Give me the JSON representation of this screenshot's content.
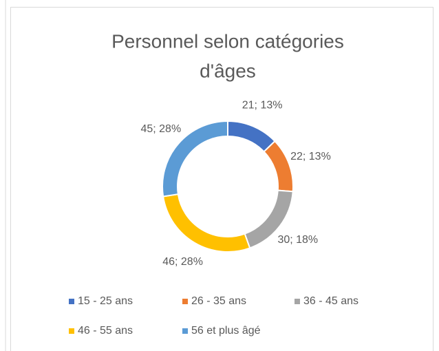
{
  "chart_data": {
    "type": "donut",
    "title": [
      "Personnel selon catégories",
      "d'âges"
    ],
    "categories": [
      "15 - 25 ans",
      "26 - 35 ans",
      "36 - 45 ans",
      "46 - 55 ans",
      "56 et plus âgé"
    ],
    "values": [
      21,
      22,
      30,
      46,
      45
    ],
    "value_labels": [
      "21; 13%",
      "22; 13%",
      "30; 18%",
      "46; 28%",
      "45; 28%"
    ],
    "colors": [
      "#4472c4",
      "#ed7d31",
      "#a5a5a5",
      "#ffc000",
      "#5b9bd5"
    ],
    "legend": "bottom"
  }
}
